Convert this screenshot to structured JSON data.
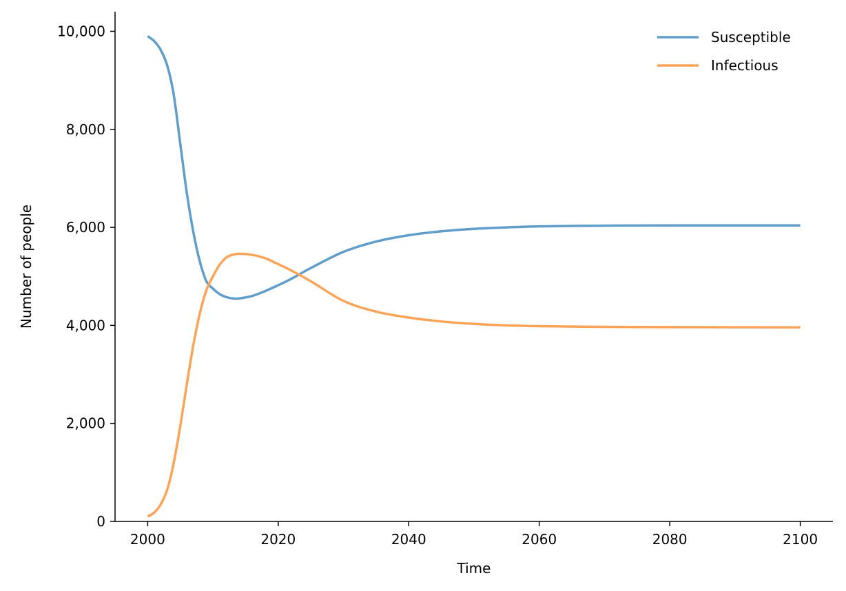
{
  "chart_data": {
    "type": "line",
    "xlabel": "Time",
    "ylabel": "Number of people",
    "xlim": [
      1995,
      2105
    ],
    "ylim": [
      0,
      10400
    ],
    "x_ticks": [
      2000,
      2020,
      2040,
      2060,
      2080,
      2100
    ],
    "x_tick_labels": [
      "2000",
      "2020",
      "2040",
      "2060",
      "2080",
      "2100"
    ],
    "y_ticks": [
      0,
      2000,
      4000,
      6000,
      8000,
      10000
    ],
    "y_tick_labels": [
      "0",
      "2,000",
      "4,000",
      "6,000",
      "8,000",
      "10,000"
    ],
    "grid": false,
    "legend_position": "top-right",
    "series": [
      {
        "name": "Susceptible",
        "color": "#5f9ecb",
        "points": [
          [
            2000,
            9900
          ],
          [
            2001,
            9800
          ],
          [
            2002,
            9620
          ],
          [
            2003,
            9300
          ],
          [
            2004,
            8700
          ],
          [
            2005,
            7700
          ],
          [
            2006,
            6700
          ],
          [
            2007,
            5900
          ],
          [
            2008,
            5300
          ],
          [
            2009,
            4900
          ],
          [
            2010,
            4750
          ],
          [
            2011,
            4640
          ],
          [
            2012,
            4580
          ],
          [
            2013,
            4550
          ],
          [
            2014,
            4550
          ],
          [
            2016,
            4600
          ],
          [
            2018,
            4700
          ],
          [
            2020,
            4820
          ],
          [
            2022,
            4950
          ],
          [
            2025,
            5170
          ],
          [
            2030,
            5500
          ],
          [
            2035,
            5710
          ],
          [
            2040,
            5840
          ],
          [
            2045,
            5920
          ],
          [
            2050,
            5970
          ],
          [
            2055,
            6000
          ],
          [
            2060,
            6020
          ],
          [
            2070,
            6035
          ],
          [
            2080,
            6040
          ],
          [
            2090,
            6040
          ],
          [
            2100,
            6040
          ]
        ]
      },
      {
        "name": "Infectious",
        "color": "#fba458",
        "points": [
          [
            2000,
            100
          ],
          [
            2001,
            180
          ],
          [
            2002,
            350
          ],
          [
            2003,
            650
          ],
          [
            2004,
            1200
          ],
          [
            2005,
            1950
          ],
          [
            2006,
            2800
          ],
          [
            2007,
            3600
          ],
          [
            2008,
            4250
          ],
          [
            2009,
            4720
          ],
          [
            2010,
            5000
          ],
          [
            2011,
            5230
          ],
          [
            2012,
            5380
          ],
          [
            2013,
            5440
          ],
          [
            2014,
            5460
          ],
          [
            2016,
            5440
          ],
          [
            2018,
            5370
          ],
          [
            2020,
            5250
          ],
          [
            2022,
            5120
          ],
          [
            2025,
            4900
          ],
          [
            2030,
            4500
          ],
          [
            2035,
            4280
          ],
          [
            2040,
            4160
          ],
          [
            2045,
            4080
          ],
          [
            2050,
            4030
          ],
          [
            2055,
            4000
          ],
          [
            2060,
            3985
          ],
          [
            2070,
            3970
          ],
          [
            2080,
            3965
          ],
          [
            2090,
            3962
          ],
          [
            2100,
            3960
          ]
        ]
      }
    ]
  }
}
